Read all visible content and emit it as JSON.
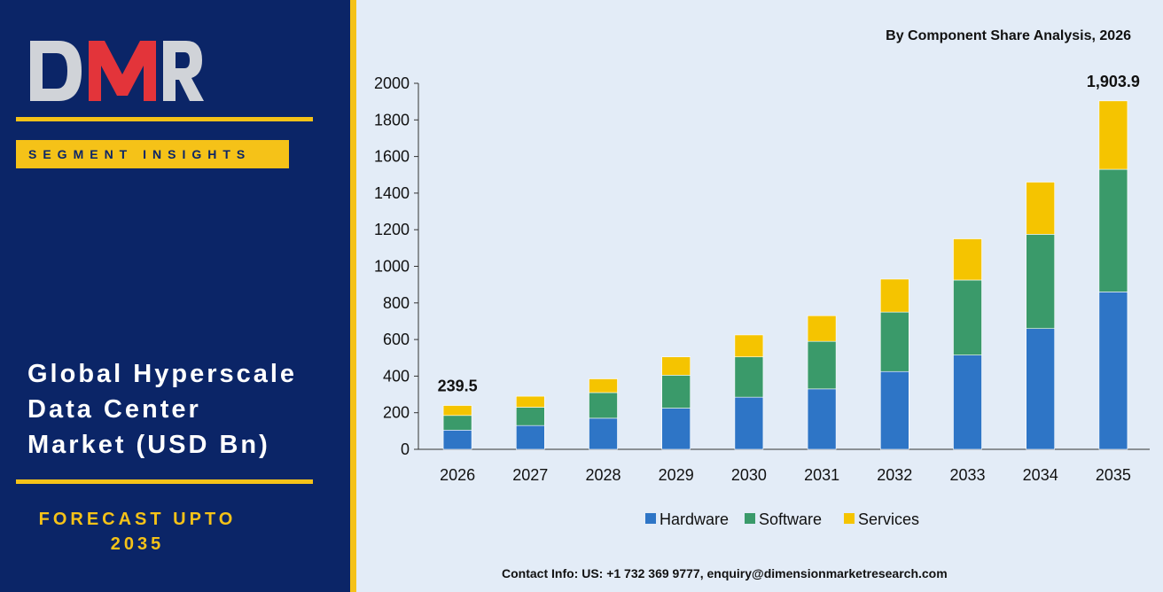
{
  "sidebar": {
    "logo_text": "DMR",
    "segment_label": "SEGMENT INSIGHTS",
    "title_lines": [
      "Global Hyperscale",
      "Data Center",
      "Market (USD Bn)"
    ],
    "forecast_lines": [
      "FORECAST UPTO",
      "2035"
    ]
  },
  "footer": {
    "contact": "Contact Info: US: +1 732 369 9777, enquiry@dimensionmarketresearch.com"
  },
  "colors": {
    "panel": "#0b2567",
    "accent": "#f5c218",
    "hardware": "#2e75c6",
    "software": "#3a9a6a",
    "services": "#f5c400"
  },
  "chart_data": {
    "type": "bar",
    "stacked": true,
    "title": "By Component Share Analysis, 2026",
    "categories": [
      "2026",
      "2027",
      "2028",
      "2029",
      "2030",
      "2031",
      "2032",
      "2033",
      "2034",
      "2035"
    ],
    "series": [
      {
        "name": "Hardware",
        "color": "#2e75c6",
        "values": [
          105,
          130,
          170,
          225,
          285,
          330,
          425,
          515,
          660,
          860
        ]
      },
      {
        "name": "Software",
        "color": "#3a9a6a",
        "values": [
          80,
          100,
          140,
          180,
          220,
          260,
          325,
          410,
          515,
          670
        ]
      },
      {
        "name": "Services",
        "color": "#f5c400",
        "values": [
          54.5,
          60,
          75,
          100,
          120,
          140,
          180,
          225,
          285,
          373.9
        ]
      }
    ],
    "data_labels": [
      {
        "category": "2026",
        "text": "239.5"
      },
      {
        "category": "2035",
        "text": "1,903.9"
      }
    ],
    "ylim": [
      0,
      2000
    ],
    "yticks": [
      0,
      200,
      400,
      600,
      800,
      1000,
      1200,
      1400,
      1600,
      1800,
      2000
    ],
    "legend_position": "bottom",
    "grid": false
  }
}
